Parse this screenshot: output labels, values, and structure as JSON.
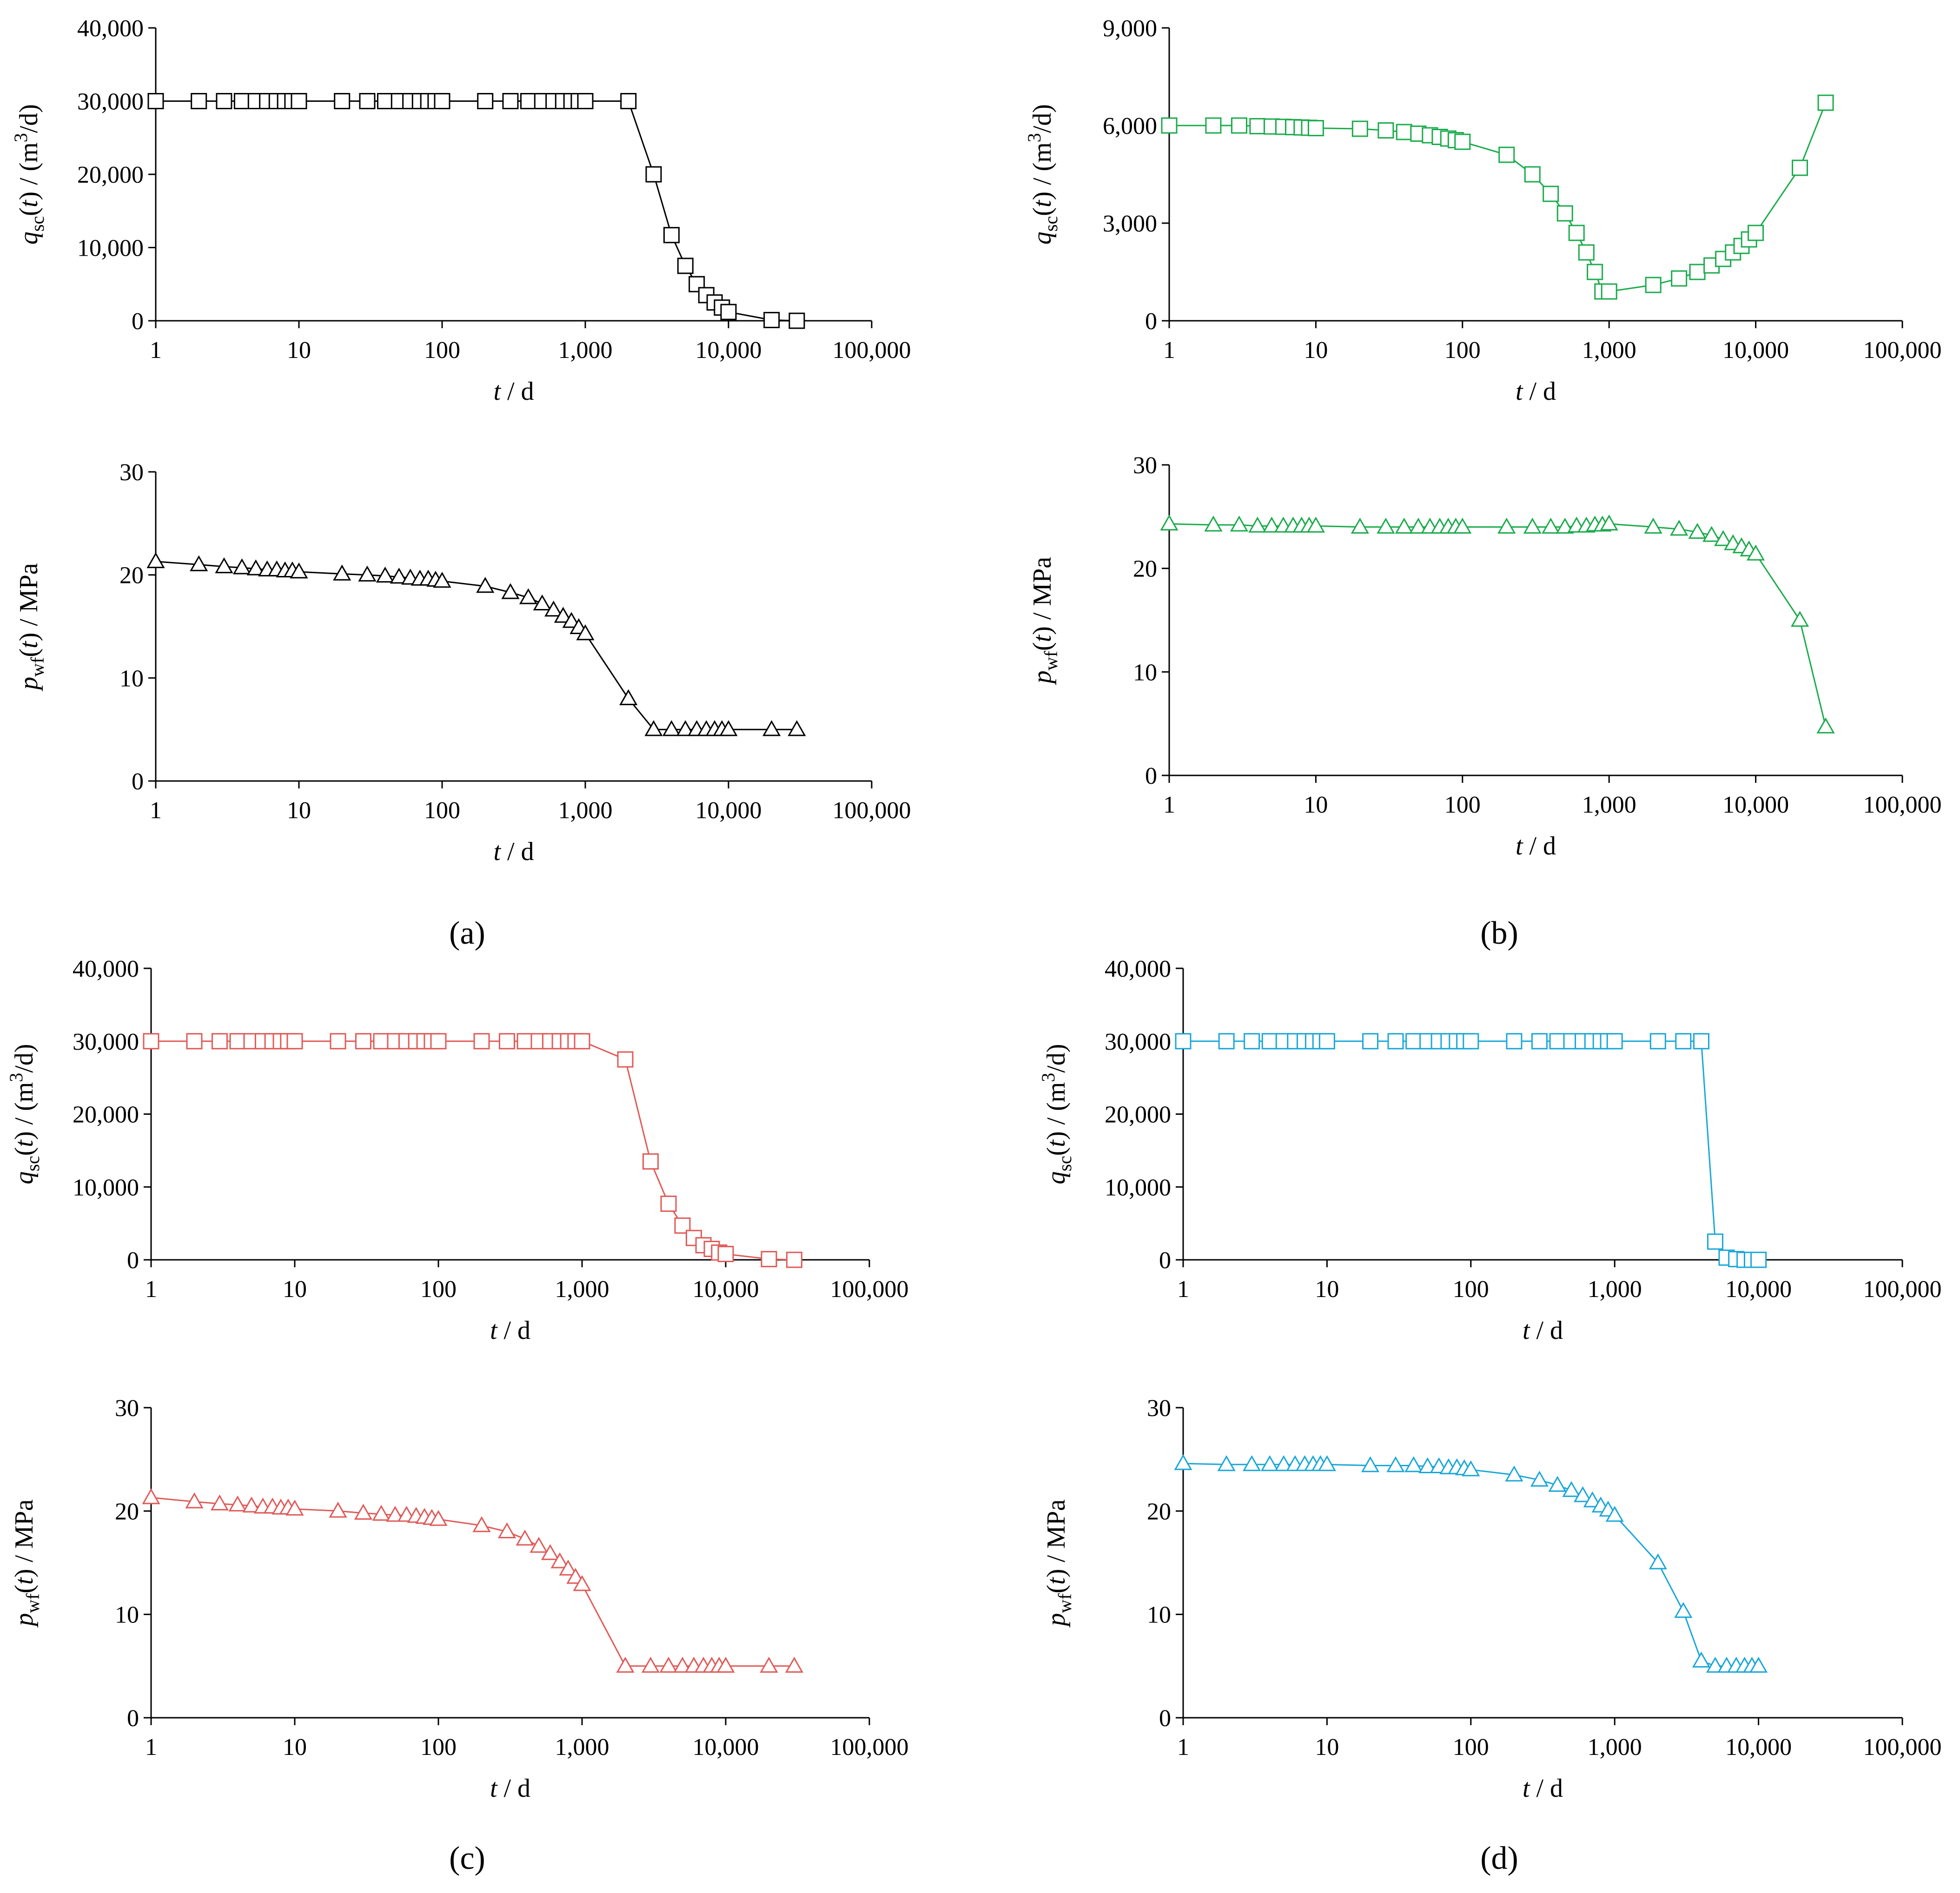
{
  "panel_labels": [
    "(a)",
    "(b)",
    "(c)",
    "(d)"
  ],
  "chart_data": [
    {
      "id": "a-q",
      "type": "line",
      "color": "#000000",
      "marker": "square",
      "title": "",
      "xscale": "log",
      "xlim": [
        1,
        100000
      ],
      "ylim": [
        0,
        40000
      ],
      "xticks": [
        "1",
        "10",
        "100",
        "1,000",
        "10,000",
        "100,000"
      ],
      "yticks": [
        "0",
        "10,000",
        "20,000",
        "30,000",
        "40,000"
      ],
      "xlabel": "t / d",
      "ylabel": "qsc(t) / (m3/d)",
      "series": [
        {
          "name": "q_sc",
          "x": [
            1,
            2,
            3,
            4,
            5,
            6,
            7,
            8,
            9,
            10,
            20,
            30,
            40,
            50,
            60,
            70,
            80,
            90,
            100,
            200,
            300,
            400,
            500,
            600,
            700,
            800,
            900,
            1000,
            2000,
            3000,
            4000,
            5000,
            6000,
            7000,
            8000,
            9000,
            10000,
            20000,
            30000
          ],
          "y": [
            30000,
            30000,
            30000,
            30000,
            30000,
            30000,
            30000,
            30000,
            30000,
            30000,
            30000,
            30000,
            30000,
            30000,
            30000,
            30000,
            30000,
            30000,
            30000,
            30000,
            30000,
            30000,
            30000,
            30000,
            30000,
            30000,
            30000,
            30000,
            30000,
            20000,
            11700,
            7500,
            5000,
            3500,
            2500,
            1800,
            1200,
            100,
            0
          ]
        }
      ]
    },
    {
      "id": "a-p",
      "type": "line",
      "color": "#000000",
      "marker": "triangle",
      "title": "",
      "xscale": "log",
      "xlim": [
        1,
        100000
      ],
      "ylim": [
        0,
        30
      ],
      "xticks": [
        "1",
        "10",
        "100",
        "1,000",
        "10,000",
        "100,000"
      ],
      "yticks": [
        "0",
        "10",
        "20",
        "30"
      ],
      "xlabel": "t / d",
      "ylabel": "pwf(t) / MPa",
      "series": [
        {
          "name": "p_wf",
          "x": [
            1,
            2,
            3,
            4,
            5,
            6,
            7,
            8,
            9,
            10,
            20,
            30,
            40,
            50,
            60,
            70,
            80,
            90,
            100,
            200,
            300,
            400,
            500,
            600,
            700,
            800,
            900,
            1000,
            2000,
            3000,
            4000,
            5000,
            6000,
            7000,
            8000,
            9000,
            10000,
            20000,
            30000
          ],
          "y": [
            21.3,
            21.0,
            20.8,
            20.7,
            20.6,
            20.5,
            20.5,
            20.4,
            20.4,
            20.3,
            20.1,
            20.0,
            19.9,
            19.8,
            19.7,
            19.6,
            19.6,
            19.5,
            19.4,
            18.9,
            18.3,
            17.8,
            17.2,
            16.6,
            16.0,
            15.5,
            14.9,
            14.3,
            8.0,
            5.0,
            5.0,
            5.0,
            5.0,
            5.0,
            5.0,
            5.0,
            5.0,
            5.0,
            5.0
          ]
        }
      ]
    },
    {
      "id": "b-q",
      "type": "line",
      "color": "#1aab4b",
      "marker": "square",
      "title": "",
      "xscale": "log",
      "xlim": [
        1,
        100000
      ],
      "ylim": [
        0,
        9000
      ],
      "xticks": [
        "1",
        "10",
        "100",
        "1,000",
        "10,000",
        "100,000"
      ],
      "yticks": [
        "0",
        "3,000",
        "6,000",
        "9,000"
      ],
      "xlabel": "t / d",
      "ylabel": "qsc(t) / (m3/d)",
      "series": [
        {
          "name": "q_sc",
          "x": [
            1,
            2,
            3,
            4,
            5,
            6,
            7,
            8,
            9,
            10,
            20,
            30,
            40,
            50,
            60,
            70,
            80,
            90,
            100,
            200,
            300,
            400,
            500,
            600,
            700,
            800,
            900,
            1000,
            2000,
            3000,
            4000,
            5000,
            6000,
            7000,
            8000,
            9000,
            10000,
            20000,
            30000
          ],
          "y": [
            6000,
            6000,
            6000,
            5980,
            5970,
            5960,
            5950,
            5940,
            5930,
            5920,
            5900,
            5850,
            5800,
            5750,
            5700,
            5650,
            5600,
            5550,
            5500,
            5100,
            4500,
            3900,
            3300,
            2700,
            2100,
            1500,
            900,
            900,
            1100,
            1300,
            1500,
            1700,
            1900,
            2100,
            2300,
            2500,
            2700,
            4700,
            6700
          ]
        }
      ]
    },
    {
      "id": "b-p",
      "type": "line",
      "color": "#1aab4b",
      "marker": "triangle",
      "title": "",
      "xscale": "log",
      "xlim": [
        1,
        100000
      ],
      "ylim": [
        0,
        30
      ],
      "xticks": [
        "1",
        "10",
        "100",
        "1,000",
        "10,000",
        "100,000"
      ],
      "yticks": [
        "0",
        "10",
        "20",
        "30"
      ],
      "xlabel": "t / d",
      "ylabel": "pwf(t) / MPa",
      "series": [
        {
          "name": "p_wf",
          "x": [
            1,
            2,
            3,
            4,
            5,
            6,
            7,
            8,
            9,
            10,
            20,
            30,
            40,
            50,
            60,
            70,
            80,
            90,
            100,
            200,
            300,
            400,
            500,
            600,
            700,
            800,
            900,
            1000,
            2000,
            3000,
            4000,
            5000,
            6000,
            7000,
            8000,
            9000,
            10000,
            20000,
            30000
          ],
          "y": [
            24.3,
            24.2,
            24.2,
            24.1,
            24.1,
            24.1,
            24.1,
            24.1,
            24.1,
            24.1,
            24.0,
            24.0,
            24.0,
            24.0,
            24.0,
            24.0,
            24.0,
            24.0,
            24.0,
            24.0,
            24.0,
            24.0,
            24.0,
            24.1,
            24.1,
            24.2,
            24.2,
            24.3,
            24.0,
            23.8,
            23.5,
            23.2,
            22.8,
            22.4,
            22.1,
            21.8,
            21.4,
            15.0,
            4.7
          ]
        }
      ]
    },
    {
      "id": "c-q",
      "type": "line",
      "color": "#e05a57",
      "marker": "square",
      "title": "",
      "xscale": "log",
      "xlim": [
        1,
        100000
      ],
      "ylim": [
        0,
        40000
      ],
      "xticks": [
        "1",
        "10",
        "100",
        "1,000",
        "10,000",
        "100,000"
      ],
      "yticks": [
        "0",
        "10,000",
        "20,000",
        "30,000",
        "40,000"
      ],
      "xlabel": "t / d",
      "ylabel": "qsc(t) / (m3/d)",
      "series": [
        {
          "name": "q_sc",
          "x": [
            1,
            2,
            3,
            4,
            5,
            6,
            7,
            8,
            9,
            10,
            20,
            30,
            40,
            50,
            60,
            70,
            80,
            90,
            100,
            200,
            300,
            400,
            500,
            600,
            700,
            800,
            900,
            1000,
            2000,
            3000,
            4000,
            5000,
            6000,
            7000,
            8000,
            9000,
            10000,
            20000,
            30000
          ],
          "y": [
            30000,
            30000,
            30000,
            30000,
            30000,
            30000,
            30000,
            30000,
            30000,
            30000,
            30000,
            30000,
            30000,
            30000,
            30000,
            30000,
            30000,
            30000,
            30000,
            30000,
            30000,
            30000,
            30000,
            30000,
            30000,
            30000,
            30000,
            30000,
            27500,
            13500,
            7700,
            4700,
            3000,
            2000,
            1500,
            1000,
            800,
            100,
            0
          ]
        }
      ]
    },
    {
      "id": "c-p",
      "type": "line",
      "color": "#e05a57",
      "marker": "triangle",
      "title": "",
      "xscale": "log",
      "xlim": [
        1,
        100000
      ],
      "ylim": [
        0,
        30
      ],
      "xticks": [
        "1",
        "10",
        "100",
        "1,000",
        "10,000",
        "100,000"
      ],
      "yticks": [
        "0",
        "10",
        "20",
        "30"
      ],
      "xlabel": "t / d",
      "ylabel": "pwf(t) / MPa",
      "series": [
        {
          "name": "p_wf",
          "x": [
            1,
            2,
            3,
            4,
            5,
            6,
            7,
            8,
            9,
            10,
            20,
            30,
            40,
            50,
            60,
            70,
            80,
            90,
            100,
            200,
            300,
            400,
            500,
            600,
            700,
            800,
            900,
            1000,
            2000,
            3000,
            4000,
            5000,
            6000,
            7000,
            8000,
            9000,
            10000,
            20000,
            30000
          ],
          "y": [
            21.3,
            20.9,
            20.7,
            20.6,
            20.5,
            20.4,
            20.4,
            20.3,
            20.3,
            20.2,
            20.0,
            19.8,
            19.7,
            19.6,
            19.6,
            19.5,
            19.4,
            19.3,
            19.2,
            18.6,
            18.0,
            17.3,
            16.6,
            15.9,
            15.1,
            14.4,
            13.6,
            12.9,
            5.0,
            5.0,
            5.0,
            5.0,
            5.0,
            5.0,
            5.0,
            5.0,
            5.0,
            5.0,
            5.0
          ]
        }
      ]
    },
    {
      "id": "d-q",
      "type": "line",
      "color": "#1aa7d8",
      "marker": "square",
      "title": "",
      "xscale": "log",
      "xlim": [
        1,
        100000
      ],
      "ylim": [
        0,
        40000
      ],
      "xticks": [
        "1",
        "10",
        "100",
        "1,000",
        "10,000",
        "100,000"
      ],
      "yticks": [
        "0",
        "10,000",
        "20,000",
        "30,000",
        "40,000"
      ],
      "xlabel": "t / d",
      "ylabel": "qsc(t) / (m3/d)",
      "series": [
        {
          "name": "q_sc",
          "x": [
            1,
            2,
            3,
            4,
            5,
            6,
            7,
            8,
            9,
            10,
            20,
            30,
            40,
            50,
            60,
            70,
            80,
            90,
            100,
            200,
            300,
            400,
            500,
            600,
            700,
            800,
            900,
            1000,
            2000,
            3000,
            4000,
            5000,
            6000,
            7000,
            8000,
            9000,
            10000
          ],
          "y": [
            30000,
            30000,
            30000,
            30000,
            30000,
            30000,
            30000,
            30000,
            30000,
            30000,
            30000,
            30000,
            30000,
            30000,
            30000,
            30000,
            30000,
            30000,
            30000,
            30000,
            30000,
            30000,
            30000,
            30000,
            30000,
            30000,
            30000,
            30000,
            30000,
            30000,
            30000,
            2500,
            300,
            100,
            0,
            0,
            0
          ]
        }
      ]
    },
    {
      "id": "d-p",
      "type": "line",
      "color": "#1aa7d8",
      "marker": "triangle",
      "title": "",
      "xscale": "log",
      "xlim": [
        1,
        100000
      ],
      "ylim": [
        0,
        30
      ],
      "xticks": [
        "1",
        "10",
        "100",
        "1,000",
        "10,000",
        "100,000"
      ],
      "yticks": [
        "0",
        "10",
        "20",
        "30"
      ],
      "xlabel": "t / d",
      "ylabel": "pwf(t) / MPa",
      "series": [
        {
          "name": "p_wf",
          "x": [
            1,
            2,
            3,
            4,
            5,
            6,
            7,
            8,
            9,
            10,
            20,
            30,
            40,
            50,
            60,
            70,
            80,
            90,
            100,
            200,
            300,
            400,
            500,
            600,
            700,
            800,
            900,
            1000,
            2000,
            3000,
            4000,
            5000,
            6000,
            7000,
            8000,
            9000,
            10000
          ],
          "y": [
            24.6,
            24.5,
            24.5,
            24.5,
            24.5,
            24.5,
            24.5,
            24.5,
            24.5,
            24.5,
            24.4,
            24.4,
            24.4,
            24.3,
            24.3,
            24.2,
            24.2,
            24.1,
            24.0,
            23.5,
            23.0,
            22.5,
            22.0,
            21.5,
            21.0,
            20.5,
            20.1,
            19.6,
            15.0,
            10.3,
            5.5,
            5.0,
            5.0,
            5.0,
            5.0,
            5.0,
            5.0
          ]
        }
      ]
    }
  ]
}
